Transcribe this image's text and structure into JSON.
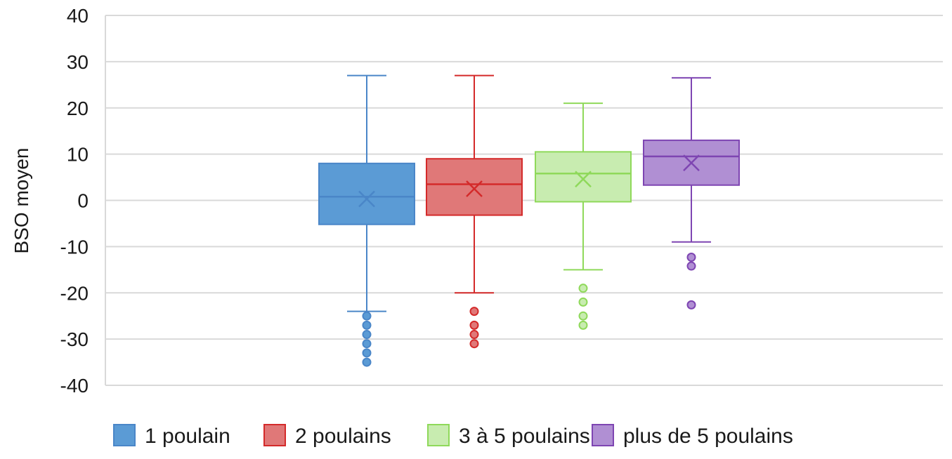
{
  "chart_data": {
    "type": "box",
    "title": "",
    "xlabel": "",
    "ylabel": "BSO moyen",
    "ylim": [
      -40,
      40
    ],
    "yticks": [
      40,
      30,
      20,
      10,
      0,
      -10,
      -20,
      -30,
      -40
    ],
    "ytick_labels": [
      "40",
      "30",
      "20",
      "10",
      "0",
      "-10",
      "-20",
      "-30",
      "-40"
    ],
    "grid": true,
    "legend_position": "bottom",
    "series": [
      {
        "name": "1 poulain",
        "color": "#4a86c8",
        "fill": "#5b9bd5",
        "min": -24,
        "q1": -5.2,
        "median": 0.8,
        "q3": 8,
        "max": 27,
        "mean": 0.3,
        "outliers": [
          -25,
          -27,
          -29,
          -31,
          -33,
          -35
        ]
      },
      {
        "name": "2 poulains",
        "color": "#d42a2a",
        "fill": "#e07878",
        "min": -20,
        "q1": -3.2,
        "median": 3.5,
        "q3": 9,
        "max": 27,
        "mean": 2.5,
        "outliers": [
          -24,
          -27,
          -29,
          -31
        ]
      },
      {
        "name": "3 à 5 poulains",
        "color": "#8fd95a",
        "fill": "#c8ecb0",
        "min": -15,
        "q1": -0.3,
        "median": 5.8,
        "q3": 10.5,
        "max": 21,
        "mean": 4.6,
        "outliers": [
          -19,
          -22,
          -25,
          -27
        ]
      },
      {
        "name": "plus de 5 poulains",
        "color": "#7e45b2",
        "fill": "#b08fd3",
        "min": -9,
        "q1": 3.3,
        "median": 9.5,
        "q3": 13,
        "max": 26.5,
        "mean": 8.1,
        "outliers": [
          -12.3,
          -14.2,
          -22.6
        ]
      }
    ]
  }
}
